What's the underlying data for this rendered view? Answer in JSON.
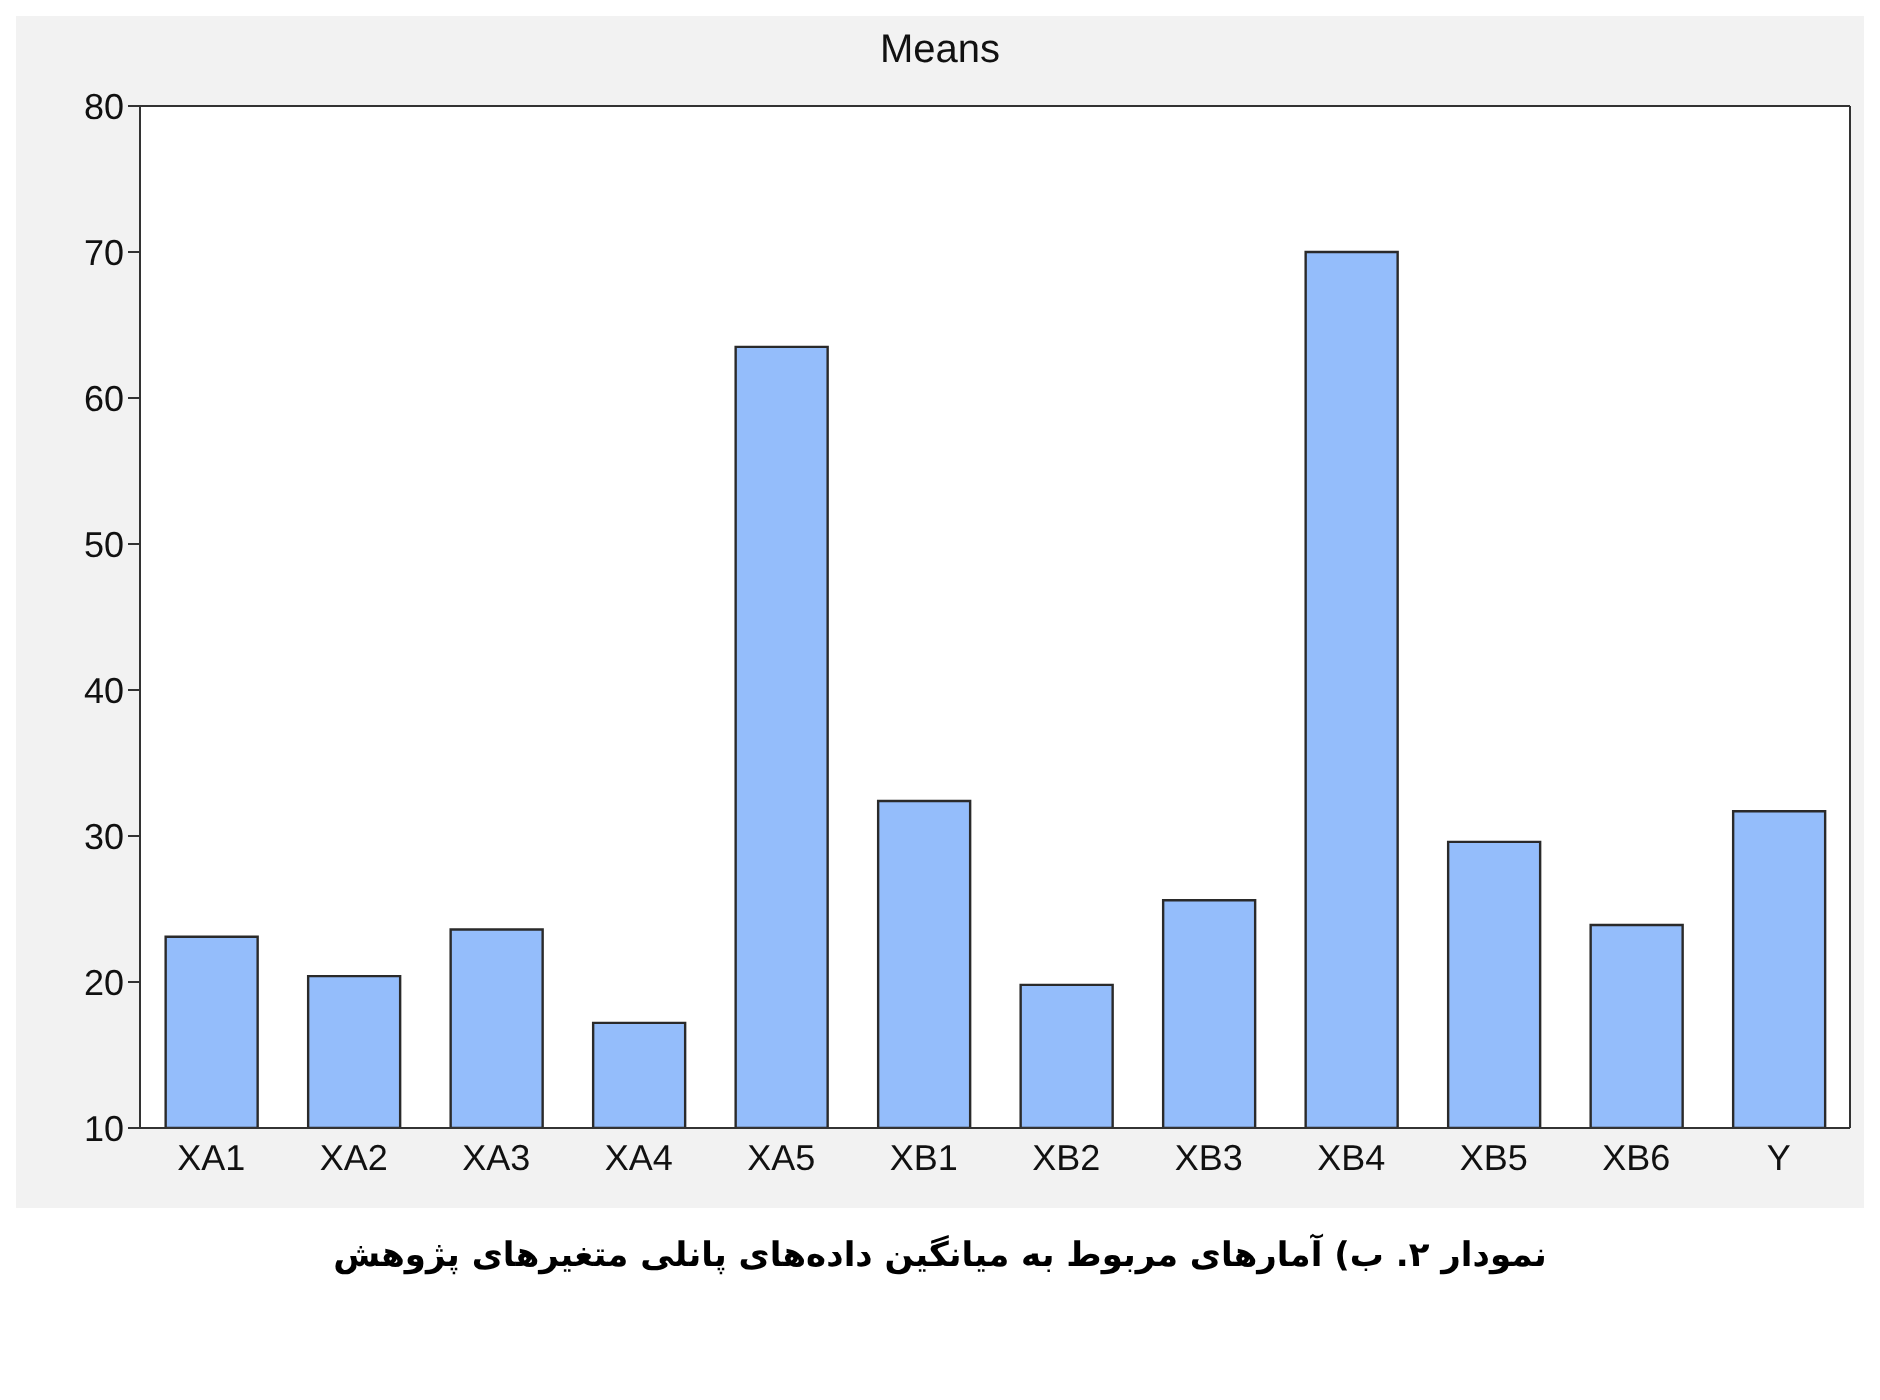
{
  "chart_data": {
    "type": "bar",
    "title": "Means",
    "categories": [
      "XA1",
      "XA2",
      "XA3",
      "XA4",
      "XA5",
      "XB1",
      "XB2",
      "XB3",
      "XB4",
      "XB5",
      "XB6",
      "Y"
    ],
    "values": [
      23.1,
      20.4,
      23.6,
      17.2,
      63.5,
      32.4,
      19.8,
      25.6,
      70.0,
      29.6,
      23.9,
      31.7
    ],
    "color": "#94bdfb",
    "ylim": [
      10,
      80
    ],
    "yticks": [
      10,
      20,
      30,
      40,
      50,
      60,
      70,
      80
    ],
    "annotations": [
      "نمودار ۲. ب) آمارهای مربوط به میانگین داده‌های پانلی متغیرهای پژوهش"
    ]
  }
}
